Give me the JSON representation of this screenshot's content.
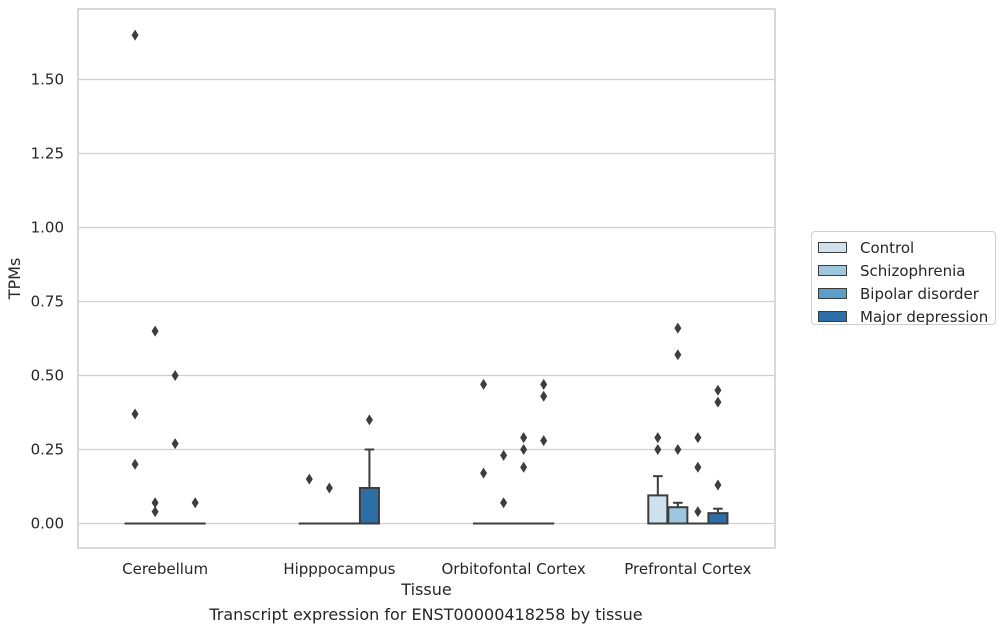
{
  "chart_data": {
    "type": "box",
    "title": "",
    "caption": "Transcript expression for ENST00000418258 by tissue",
    "xlabel": "Tissue",
    "ylabel": "TPMs",
    "ylim": [
      -0.08,
      1.75
    ],
    "yticks": [
      "0.00",
      "0.25",
      "0.50",
      "0.75",
      "1.00",
      "1.25",
      "1.50"
    ],
    "categories": [
      "Cerebellum",
      "Hipppocampus",
      "Orbitofontal Cortex",
      "Prefrontal Cortex"
    ],
    "grid": true,
    "legend_position": "right",
    "series": [
      {
        "name": "Control",
        "color": "#cfe0ef",
        "boxes": [
          {
            "q1": 0,
            "median": 0,
            "q3": 0,
            "whisker_low": 0,
            "whisker_high": 0,
            "outliers": [
              1.65,
              0.37,
              0.2
            ]
          },
          {
            "q1": 0,
            "median": 0,
            "q3": 0,
            "whisker_low": 0,
            "whisker_high": 0,
            "outliers": [
              0.15
            ]
          },
          {
            "q1": 0,
            "median": 0,
            "q3": 0,
            "whisker_low": 0,
            "whisker_high": 0,
            "outliers": [
              0.47,
              0.17
            ]
          },
          {
            "q1": 0,
            "median": 0,
            "q3": 0.095,
            "whisker_low": 0,
            "whisker_high": 0.16,
            "outliers": [
              0.29,
              0.25
            ]
          }
        ]
      },
      {
        "name": "Schizophrenia",
        "color": "#9ec7df",
        "boxes": [
          {
            "q1": 0,
            "median": 0,
            "q3": 0,
            "whisker_low": 0,
            "whisker_high": 0,
            "outliers": [
              0.65,
              0.07,
              0.04
            ]
          },
          {
            "q1": 0,
            "median": 0,
            "q3": 0,
            "whisker_low": 0,
            "whisker_high": 0,
            "outliers": [
              0.12
            ]
          },
          {
            "q1": 0,
            "median": 0,
            "q3": 0,
            "whisker_low": 0,
            "whisker_high": 0,
            "outliers": [
              0.23,
              0.07
            ]
          },
          {
            "q1": 0,
            "median": 0,
            "q3": 0.055,
            "whisker_low": 0,
            "whisker_high": 0.07,
            "outliers": [
              0.66,
              0.57,
              0.25
            ]
          }
        ]
      },
      {
        "name": "Bipolar disorder",
        "color": "#5b9ec9",
        "boxes": [
          {
            "q1": 0,
            "median": 0,
            "q3": 0,
            "whisker_low": 0,
            "whisker_high": 0,
            "outliers": [
              0.5,
              0.27
            ]
          },
          {
            "q1": 0,
            "median": 0,
            "q3": 0,
            "whisker_low": 0,
            "whisker_high": 0,
            "outliers": []
          },
          {
            "q1": 0,
            "median": 0,
            "q3": 0,
            "whisker_low": 0,
            "whisker_high": 0,
            "outliers": [
              0.29,
              0.25,
              0.19
            ]
          },
          {
            "q1": 0,
            "median": 0,
            "q3": 0,
            "whisker_low": 0,
            "whisker_high": 0,
            "outliers": [
              0.29,
              0.19,
              0.04
            ]
          }
        ]
      },
      {
        "name": "Major depression",
        "color": "#2d6ea8",
        "boxes": [
          {
            "q1": 0,
            "median": 0,
            "q3": 0,
            "whisker_low": 0,
            "whisker_high": 0,
            "outliers": [
              0.07
            ]
          },
          {
            "q1": 0,
            "median": 0,
            "q3": 0.12,
            "whisker_low": 0,
            "whisker_high": 0.25,
            "outliers": [
              0.35
            ]
          },
          {
            "q1": 0,
            "median": 0,
            "q3": 0,
            "whisker_low": 0,
            "whisker_high": 0,
            "outliers": [
              0.47,
              0.43,
              0.28
            ]
          },
          {
            "q1": 0,
            "median": 0,
            "q3": 0.035,
            "whisker_low": 0,
            "whisker_high": 0.05,
            "outliers": [
              0.45,
              0.41,
              0.13
            ]
          }
        ]
      }
    ]
  }
}
